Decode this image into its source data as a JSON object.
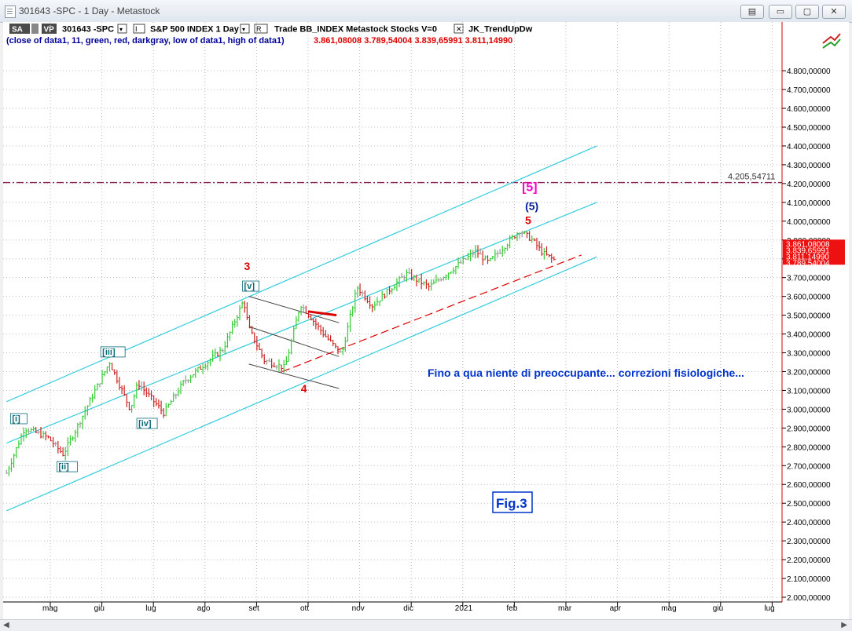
{
  "window": {
    "title": "301643 -SPC - 1 Day - Metastock"
  },
  "toolbar": {
    "sa_label": "SA",
    "vp_label": "VP",
    "symbol": "301643 -SPC",
    "i_label": "I",
    "index_name": "S&P 500 INDEX  1 Day",
    "r_label": "R",
    "trade_label": "Trade  BB_INDEX  Metastock  Stocks  V=0",
    "indicator_label": "JK_TrendUpDw",
    "formula": "(close of data1,  11,  green,  red,  darkgray,  low of data1,  high of data1)",
    "formula_values": "3.861,08008  3.789,54004  3.839,65991  3.811,14990"
  },
  "colors": {
    "up_bar": "#33cc33",
    "down_bar": "#cc2222",
    "neutral_bar": "#999999",
    "channel": "#33ccdd",
    "wave_red": "#dd0000",
    "wave_blue": "#001a99",
    "wave_magenta": "#ff00cc",
    "wave_teal": "#0a6a78",
    "annotation": "#0033cc",
    "level_line": "#882255"
  },
  "chart_data": {
    "type": "candlestick",
    "title": "S&P 500 INDEX  1 Day",
    "x_months": [
      "mag",
      "giu",
      "lug",
      "ago",
      "set",
      "ott",
      "nov",
      "dic",
      "2021",
      "feb",
      "mar",
      "apr",
      "mag",
      "giu",
      "lug"
    ],
    "y_ticks": [
      "2.000,00000",
      "2.100,00000",
      "2.200,00000",
      "2.300,00000",
      "2.400,00000",
      "2.500,00000",
      "2.600,00000",
      "2.700,00000",
      "2.800,00000",
      "2.900,00000",
      "3.000,00000",
      "3.100,00000",
      "3.200,00000",
      "3.300,00000",
      "3.400,00000",
      "3.500,00000",
      "3.600,00000",
      "3.700,00000",
      "3.800,00000",
      "3.900,00000",
      "4.000,00000",
      "4.100,00000",
      "4.200,00000",
      "4.300,00000",
      "4.400,00000",
      "4.500,00000",
      "4.600,00000",
      "4.700,00000",
      "4.800,00000"
    ],
    "ylim": [
      2000,
      4800
    ],
    "price_path_month_index": [
      -0.85,
      -0.5,
      -0.05,
      0.25,
      0.6,
      0.85,
      1.15,
      1.55,
      1.7,
      2.2,
      2.6,
      3.35,
      3.75,
      3.85,
      4.15,
      4.55,
      4.85,
      5.3,
      5.65,
      5.95,
      6.25,
      6.9,
      7.35,
      8.25,
      8.5,
      9.1,
      9.35,
      9.55,
      9.8
    ],
    "price_path_values": [
      2660,
      2900,
      2850,
      2760,
      2950,
      3090,
      3250,
      3000,
      3140,
      2980,
      3150,
      3320,
      3580,
      3430,
      3260,
      3220,
      3560,
      3400,
      3290,
      3650,
      3550,
      3720,
      3650,
      3840,
      3780,
      3950,
      3900,
      3830,
      3789
    ],
    "last_close": "3.789,54004",
    "last_labels": [
      "3.861,08008",
      "3.839,65991",
      "3.811,14990",
      "3.789,54004"
    ],
    "level_line": {
      "value": 4205.5,
      "label": "4.205,54711"
    },
    "wave_labels": [
      {
        "text": "[i]",
        "x": -0.65,
        "y": 2935,
        "color": "teal"
      },
      {
        "text": "[ii]",
        "x": 0.25,
        "y": 2680,
        "color": "teal"
      },
      {
        "text": "[iii]",
        "x": 1.1,
        "y": 3290,
        "color": "teal"
      },
      {
        "text": "[iv]",
        "x": 1.8,
        "y": 2910,
        "color": "teal"
      },
      {
        "text": "[v]",
        "x": 3.85,
        "y": 3640,
        "color": "teal"
      },
      {
        "text": "3",
        "x": 3.85,
        "y": 3740,
        "color": "red"
      },
      {
        "text": "4",
        "x": 4.95,
        "y": 3090,
        "color": "red"
      },
      {
        "text": "5",
        "x": 9.3,
        "y": 3985,
        "color": "red"
      },
      {
        "text": "(5)",
        "x": 9.3,
        "y": 4060,
        "color": "blue"
      },
      {
        "text": "[5]",
        "x": 9.3,
        "y": 4160,
        "color": "magenta"
      }
    ],
    "annotation": "Fino a qua niente di preoccupante... correzioni fisiologiche...",
    "figure_label": "Fig.3",
    "grid": true
  }
}
